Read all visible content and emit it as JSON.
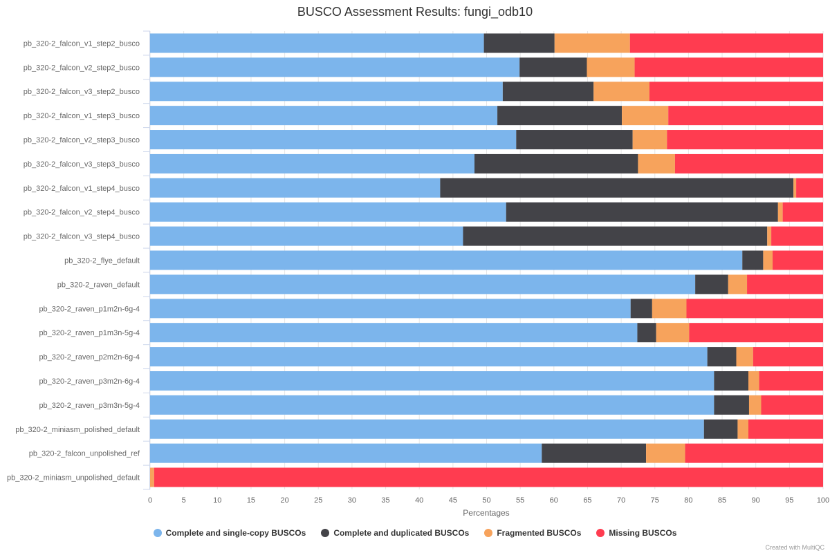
{
  "chart_data": {
    "type": "bar",
    "orientation": "horizontal",
    "stacked": true,
    "title": "BUSCO Assessment Results: fungi_odb10",
    "xlabel": "Percentages",
    "ylabel": "",
    "xlim": [
      0,
      100
    ],
    "x_ticks": [
      0,
      5,
      10,
      15,
      20,
      25,
      30,
      35,
      40,
      45,
      50,
      55,
      60,
      65,
      70,
      75,
      80,
      85,
      90,
      95,
      100
    ],
    "grid": true,
    "legend_position": "bottom",
    "categories": [
      "pb_320-2_falcon_v1_step2_busco",
      "pb_320-2_falcon_v2_step2_busco",
      "pb_320-2_falcon_v3_step2_busco",
      "pb_320-2_falcon_v1_step3_busco",
      "pb_320-2_falcon_v2_step3_busco",
      "pb_320-2_falcon_v3_step3_busco",
      "pb_320-2_falcon_v1_step4_busco",
      "pb_320-2_falcon_v2_step4_busco",
      "pb_320-2_falcon_v3_step4_busco",
      "pb_320-2_flye_default",
      "pb_320-2_raven_default",
      "pb_320-2_raven_p1m2n-6g-4",
      "pb_320-2_raven_p1m3n-5g-4",
      "pb_320-2_raven_p2m2n-6g-4",
      "pb_320-2_raven_p3m2n-6g-4",
      "pb_320-2_raven_p3m3n-5g-4",
      "pb_320-2_miniasm_polished_default",
      "pb_320-2_falcon_unpolished_ref",
      "pb_320-2_miniasm_unpolished_default"
    ],
    "series": [
      {
        "name": "Complete and single-copy BUSCOs",
        "color": "#7cb5ec",
        "values": [
          49.6,
          54.9,
          52.4,
          51.6,
          54.4,
          48.2,
          43.1,
          52.9,
          46.5,
          88.0,
          81.0,
          71.4,
          72.4,
          82.8,
          83.8,
          83.8,
          82.3,
          58.2,
          0.0
        ]
      },
      {
        "name": "Complete and duplicated BUSCOs",
        "color": "#434348",
        "values": [
          10.5,
          10.0,
          13.5,
          18.5,
          17.3,
          24.3,
          52.5,
          40.4,
          45.2,
          3.1,
          4.9,
          3.2,
          2.8,
          4.3,
          5.1,
          5.2,
          5.0,
          15.5,
          0.0
        ]
      },
      {
        "name": "Fragmented BUSCOs",
        "color": "#f7a35c",
        "values": [
          11.2,
          7.1,
          8.3,
          6.9,
          5.1,
          5.5,
          0.4,
          0.7,
          0.6,
          1.4,
          2.8,
          5.1,
          4.9,
          2.5,
          1.6,
          1.8,
          1.6,
          5.8,
          0.6
        ]
      },
      {
        "name": "Missing BUSCOs",
        "color": "#ff3c50",
        "values": [
          28.7,
          28.0,
          25.8,
          23.0,
          23.2,
          22.0,
          4.0,
          6.0,
          7.7,
          7.5,
          11.3,
          20.3,
          19.9,
          10.4,
          9.5,
          9.2,
          11.1,
          20.5,
          99.4
        ]
      }
    ],
    "credits": "Created with MultiQC"
  }
}
